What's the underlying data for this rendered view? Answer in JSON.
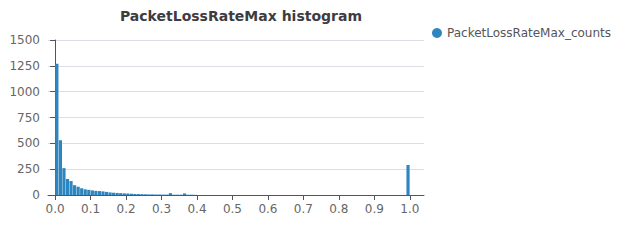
{
  "chart_data": {
    "type": "bar",
    "title": "PacketLossRateMax histogram",
    "x": [
      0.005,
      0.015,
      0.025,
      0.035,
      0.045,
      0.055,
      0.065,
      0.075,
      0.085,
      0.095,
      0.105,
      0.115,
      0.125,
      0.135,
      0.145,
      0.155,
      0.165,
      0.175,
      0.185,
      0.195,
      0.205,
      0.215,
      0.225,
      0.235,
      0.245,
      0.255,
      0.265,
      0.275,
      0.285,
      0.295,
      0.305,
      0.315,
      0.325,
      0.335,
      0.345,
      0.355,
      0.365,
      0.375,
      0.385,
      0.395,
      0.995
    ],
    "series": [
      {
        "name": "PacketLossRateMax_counts",
        "color": "#2E86C1",
        "values": [
          1270,
          530,
          260,
          155,
          135,
          95,
          80,
          65,
          55,
          50,
          45,
          40,
          38,
          35,
          30,
          25,
          22,
          20,
          18,
          16,
          14,
          12,
          10,
          9,
          8,
          7,
          6,
          6,
          5,
          5,
          4,
          4,
          18,
          3,
          3,
          3,
          15,
          3,
          3,
          2,
          290
        ]
      }
    ],
    "xlim": [
      -0.02,
      1.04
    ],
    "xticks": [
      {
        "value": 0.0,
        "label": "0.0"
      },
      0.1,
      0.2,
      0.3,
      0.4,
      0.5,
      0.6,
      0.7,
      0.8,
      0.9,
      {
        "value": 1.0,
        "label": "1.0"
      }
    ],
    "ylim": [
      0,
      1500
    ],
    "yticks": [
      0,
      250,
      500,
      750,
      1000,
      1250,
      1500
    ],
    "grid": true,
    "legend": "upper right"
  }
}
